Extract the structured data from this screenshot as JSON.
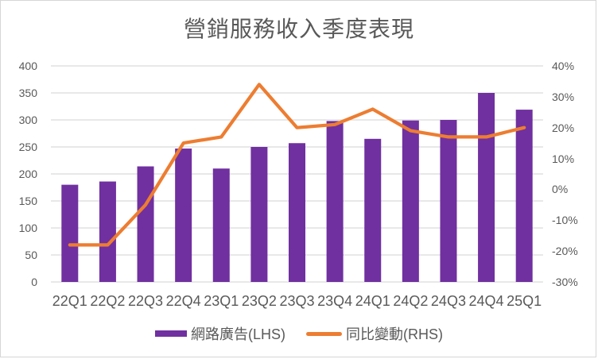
{
  "chart_data": {
    "type": "combo-bar-line",
    "title": "營銷服務收入季度表現",
    "categories": [
      "22Q1",
      "22Q2",
      "22Q3",
      "22Q4",
      "23Q1",
      "23Q2",
      "23Q3",
      "23Q4",
      "24Q1",
      "24Q2",
      "24Q3",
      "24Q4",
      "25Q1"
    ],
    "series": [
      {
        "name": "網路廣告(LHS)",
        "type": "bar",
        "axis": "left",
        "color": "#7030A0",
        "values": [
          180,
          186,
          214,
          247,
          210,
          250,
          257,
          298,
          265,
          299,
          300,
          350,
          319
        ]
      },
      {
        "name": "同比變動(RHS)",
        "type": "line",
        "axis": "right",
        "color": "#ED7D31",
        "values": [
          -18,
          -18,
          -5,
          15,
          17,
          34,
          20,
          21,
          26,
          19,
          17,
          17,
          20
        ]
      }
    ],
    "axes": {
      "left": {
        "min": 0,
        "max": 400,
        "tick_labels": [
          "400",
          "350",
          "300",
          "250",
          "200",
          "150",
          "100",
          "50",
          "0"
        ]
      },
      "right": {
        "min": -30,
        "max": 40,
        "tick_labels": [
          "40%",
          "30%",
          "20%",
          "10%",
          "0%",
          "-10%",
          "-20%",
          "-30%"
        ]
      }
    },
    "grid": true,
    "legend_position": "bottom",
    "colors": {
      "gridline": "#D9D9D9",
      "text": "#595959",
      "border": "#D6D6D6",
      "background": "#FFFFFF"
    }
  }
}
